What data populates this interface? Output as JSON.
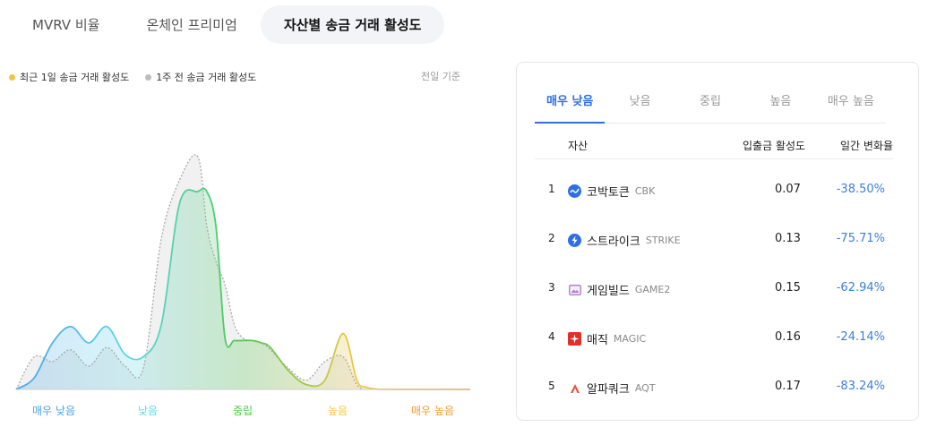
{
  "tabs": [
    {
      "label": "MVRV 비율",
      "active": false
    },
    {
      "label": "온체인 프리미엄",
      "active": false
    },
    {
      "label": "자산별 송금 거래 활성도",
      "active": true
    }
  ],
  "legend": {
    "recent": {
      "label": "최근 1일 송금 거래 활성도",
      "color": "#f4c542"
    },
    "week": {
      "label": "1주 전 송금 거래 활성도",
      "color": "#bdbdbd"
    }
  },
  "basis": "전일 기준",
  "chart_data": {
    "type": "area",
    "categories": [
      {
        "label": "매우 낮음",
        "color": "#4aa3e8"
      },
      {
        "label": "낮음",
        "color": "#5fd6e6"
      },
      {
        "label": "중립",
        "color": "#4cc94c"
      },
      {
        "label": "높음",
        "color": "#f2c744"
      },
      {
        "label": "매우 높음",
        "color": "#f29a2e"
      }
    ],
    "x": [
      0,
      0.04,
      0.08,
      0.12,
      0.16,
      0.2,
      0.24,
      0.28,
      0.32,
      0.36,
      0.4,
      0.42,
      0.44,
      0.46,
      0.48,
      0.5,
      0.52,
      0.54,
      0.56,
      0.6,
      0.64,
      0.68,
      0.72,
      0.75,
      0.77,
      0.8,
      0.82,
      0.84,
      0.86,
      0.88,
      0.92,
      0.96,
      1.0
    ],
    "series": [
      {
        "name": "최근 1일 송금 거래 활성도",
        "values": [
          0,
          0.05,
          0.2,
          0.27,
          0.2,
          0.27,
          0.15,
          0.14,
          0.28,
          0.8,
          0.85,
          0.85,
          0.7,
          0.22,
          0.21,
          0.21,
          0.21,
          0.2,
          0.18,
          0.08,
          0.02,
          0.04,
          0.24,
          0.04,
          0.01,
          0,
          0,
          0,
          0,
          0,
          0,
          0,
          0
        ]
      },
      {
        "name": "1주 전 송금 거래 활성도",
        "values": [
          0,
          0.14,
          0.12,
          0.17,
          0.1,
          0.18,
          0.1,
          0.09,
          0.65,
          0.9,
          1.0,
          0.7,
          0.55,
          0.45,
          0.28,
          0.22,
          0.21,
          0.2,
          0.17,
          0.09,
          0.04,
          0.12,
          0.14,
          0.02,
          0,
          0,
          0,
          0,
          0,
          0,
          0,
          0,
          0
        ]
      }
    ]
  },
  "panel": {
    "tabs": [
      {
        "label": "매우 낮음",
        "active": true
      },
      {
        "label": "낮음",
        "active": false
      },
      {
        "label": "중립",
        "active": false
      },
      {
        "label": "높음",
        "active": false
      },
      {
        "label": "매우 높음",
        "active": false
      }
    ],
    "headers": {
      "asset": "자산",
      "activity": "입출금 활성도",
      "change": "일간 변화율"
    },
    "rows": [
      {
        "rank": "1",
        "name": "코박토큰",
        "symbol": "CBK",
        "activity": "0.07",
        "change": "-38.50%",
        "icon": "cbk-coin-icon",
        "icon_color": "#2f6fe4"
      },
      {
        "rank": "2",
        "name": "스트라이크",
        "symbol": "STRIKE",
        "activity": "0.13",
        "change": "-75.71%",
        "icon": "lightning-icon",
        "icon_color": "#2f6fe4"
      },
      {
        "rank": "3",
        "name": "게임빌드",
        "symbol": "GAME2",
        "activity": "0.15",
        "change": "-62.94%",
        "icon": "image-frame-icon",
        "icon_color": "#b07cc6"
      },
      {
        "rank": "4",
        "name": "매직",
        "symbol": "MAGIC",
        "activity": "0.16",
        "change": "-24.14%",
        "icon": "magic-spark-icon",
        "icon_color": "#e0302a"
      },
      {
        "rank": "5",
        "name": "알파쿼크",
        "symbol": "AQT",
        "activity": "0.17",
        "change": "-83.24%",
        "icon": "alpha-triangle-icon",
        "icon_color": "#e5533c"
      }
    ]
  }
}
